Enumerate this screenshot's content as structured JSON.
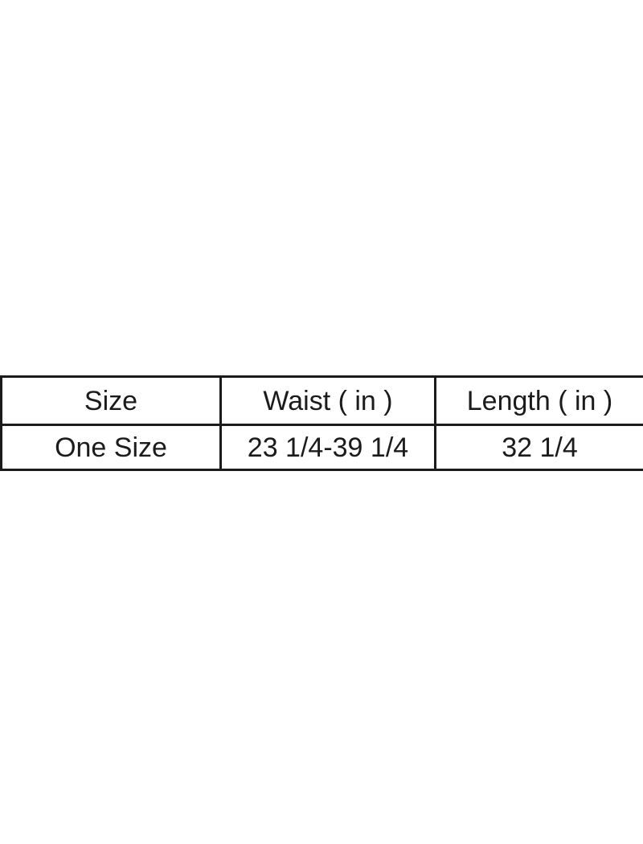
{
  "colors": {
    "background": "#ffffff",
    "border": "#1b1b1b",
    "text": "#1b1b1b"
  },
  "chart_data": {
    "type": "table",
    "title": "",
    "columns": [
      "Size",
      "Waist ( in )",
      "Length ( in )"
    ],
    "rows": [
      [
        "One Size",
        "23 1/4-39 1/4",
        "32 1/4"
      ]
    ]
  }
}
